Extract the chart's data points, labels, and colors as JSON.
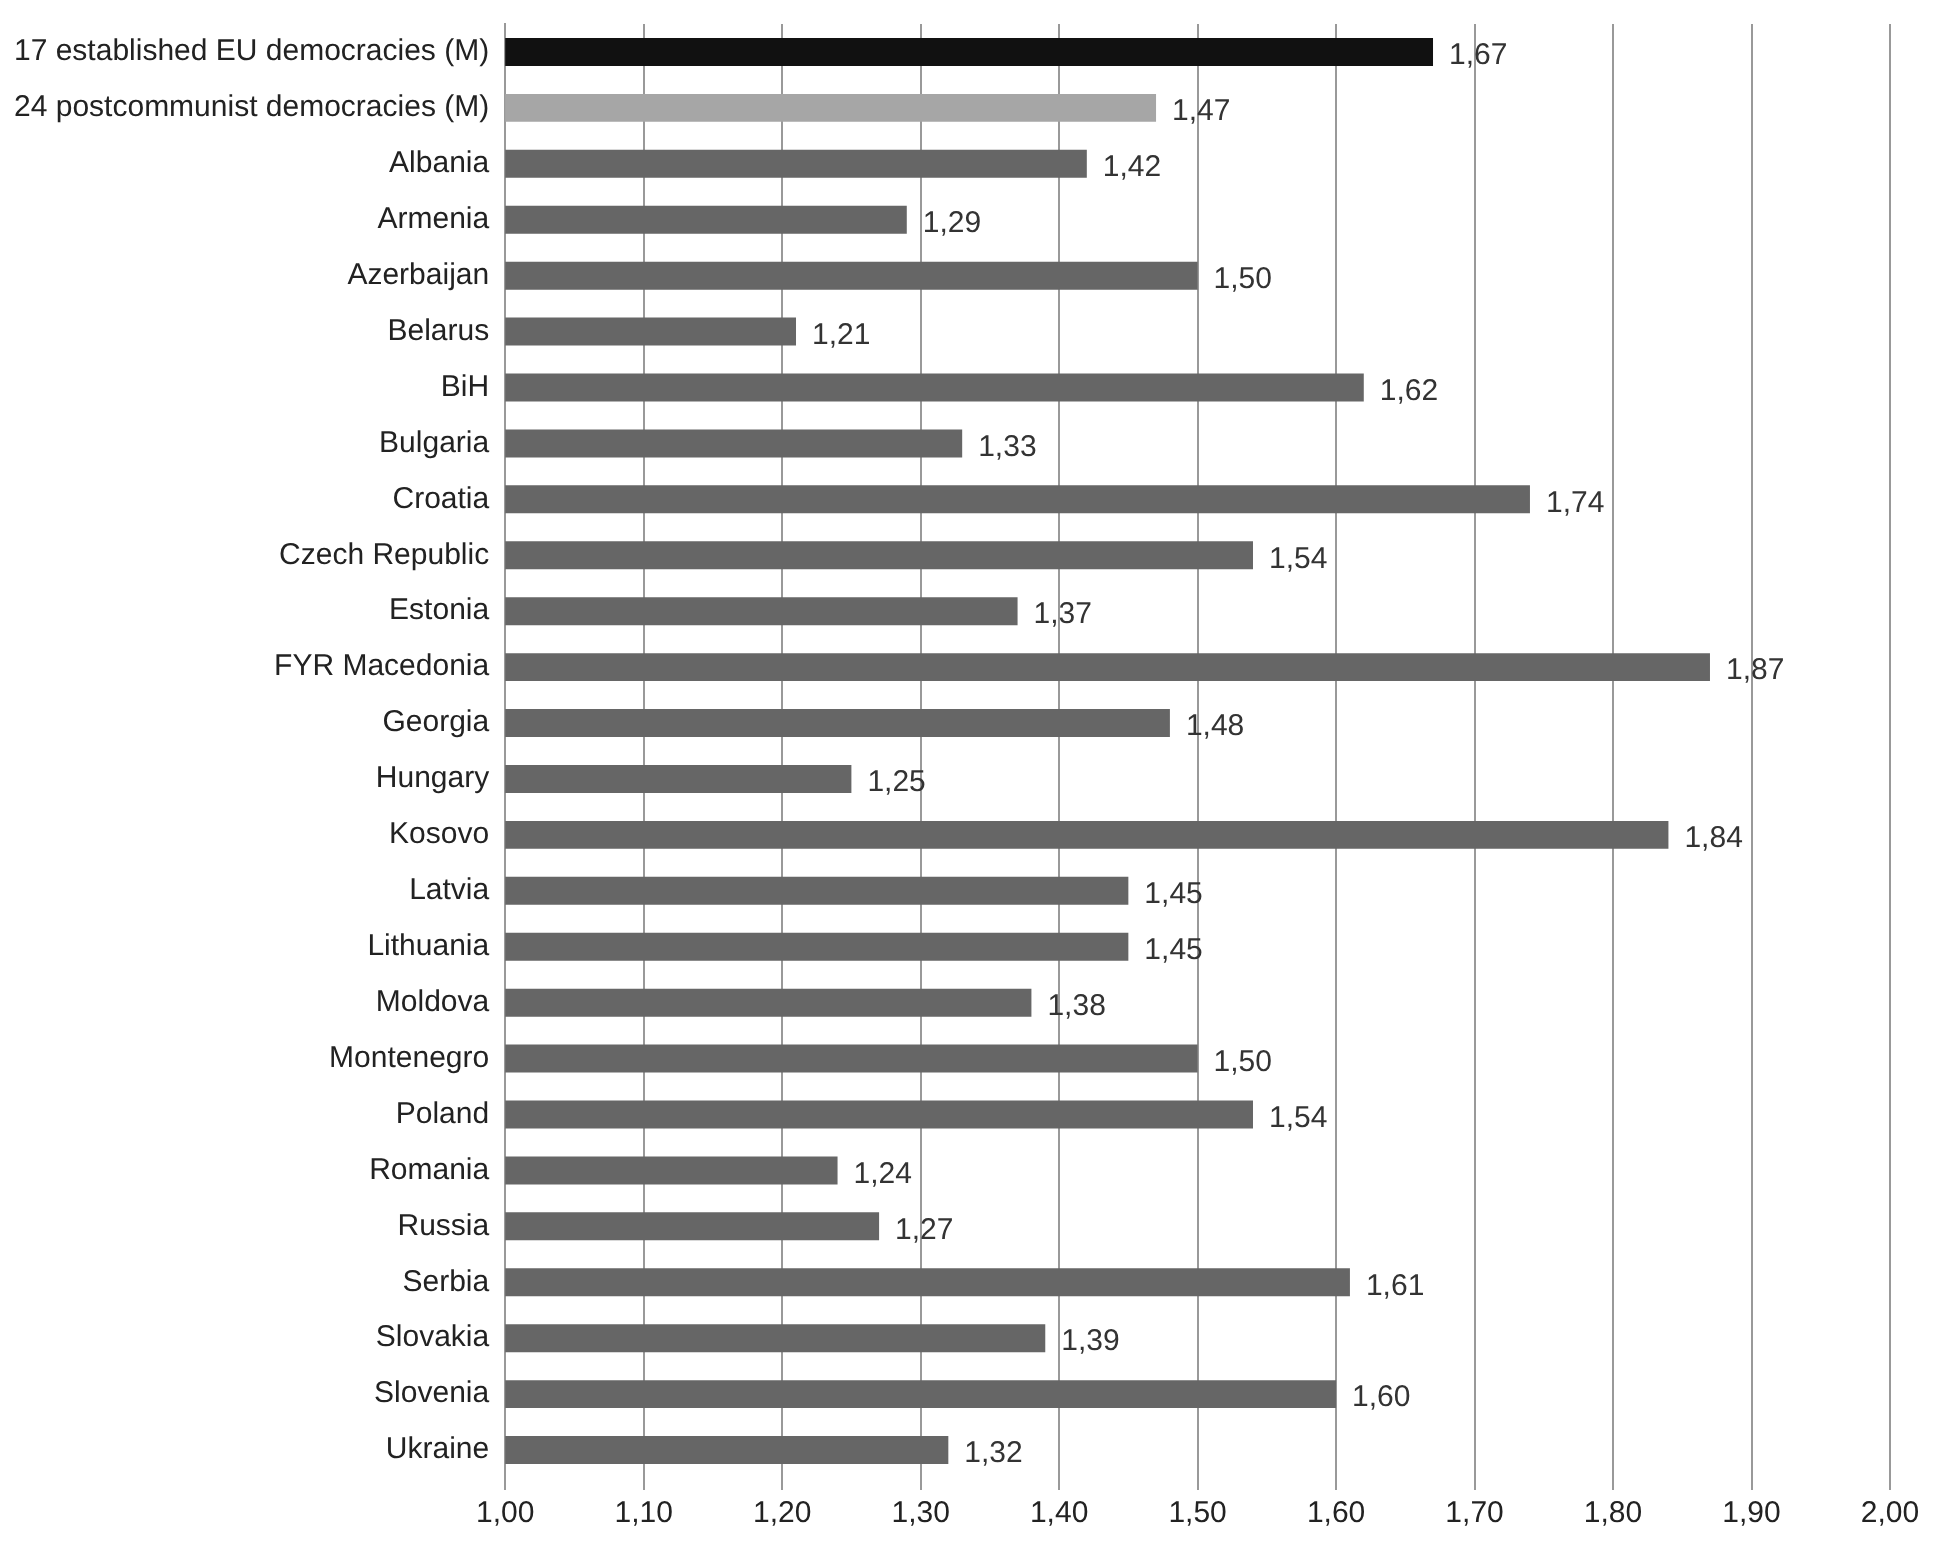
{
  "chart_data": {
    "type": "bar",
    "orientation": "horizontal",
    "categories": [
      "17 established EU democracies (M)",
      "24 postcommunist democracies (M)",
      "Albania",
      "Armenia",
      "Azerbaijan",
      "Belarus",
      "BiH",
      "Bulgaria",
      "Croatia",
      "Czech Republic",
      "Estonia",
      "FYR Macedonia",
      "Georgia",
      "Hungary",
      "Kosovo",
      "Latvia",
      "Lithuania",
      "Moldova",
      "Montenegro",
      "Poland",
      "Romania",
      "Russia",
      "Serbia",
      "Slovakia",
      "Slovenia",
      "Ukraine"
    ],
    "values": [
      1.67,
      1.47,
      1.42,
      1.29,
      1.5,
      1.21,
      1.62,
      1.33,
      1.74,
      1.54,
      1.37,
      1.87,
      1.48,
      1.25,
      1.84,
      1.45,
      1.45,
      1.38,
      1.5,
      1.54,
      1.24,
      1.27,
      1.61,
      1.39,
      1.6,
      1.32
    ],
    "value_labels": [
      "1,67",
      "1,47",
      "1,42",
      "1,29",
      "1,50",
      "1,21",
      "1,62",
      "1,33",
      "1,74",
      "1,54",
      "1,37",
      "1,87",
      "1,48",
      "1,25",
      "1,84",
      "1,45",
      "1,45",
      "1,38",
      "1,50",
      "1,54",
      "1,24",
      "1,27",
      "1,61",
      "1,39",
      "1,60",
      "1,32"
    ],
    "colors": [
      "#111111",
      "#a6a6a6",
      "#666666",
      "#666666",
      "#666666",
      "#666666",
      "#666666",
      "#666666",
      "#666666",
      "#666666",
      "#666666",
      "#666666",
      "#666666",
      "#666666",
      "#666666",
      "#666666",
      "#666666",
      "#666666",
      "#666666",
      "#666666",
      "#666666",
      "#666666",
      "#666666",
      "#666666",
      "#666666",
      "#666666"
    ],
    "xlim": [
      1,
      2
    ],
    "xticks": [
      {
        "value": 1,
        "label": "1,00"
      },
      {
        "value": 1.1,
        "label": "1,10"
      },
      {
        "value": 1.2,
        "label": "1,20"
      },
      {
        "value": 1.3,
        "label": "1,30"
      },
      {
        "value": 1.4,
        "label": "1,40"
      },
      {
        "value": 1.5,
        "label": "1,50"
      },
      {
        "value": 1.6,
        "label": "1,60"
      },
      {
        "value": 1.7,
        "label": "1,70"
      },
      {
        "value": 1.8,
        "label": "1,80"
      },
      {
        "value": 1.9,
        "label": "1,90"
      },
      {
        "value": 2,
        "label": "2,00"
      }
    ],
    "grid": "x",
    "legend": false
  }
}
